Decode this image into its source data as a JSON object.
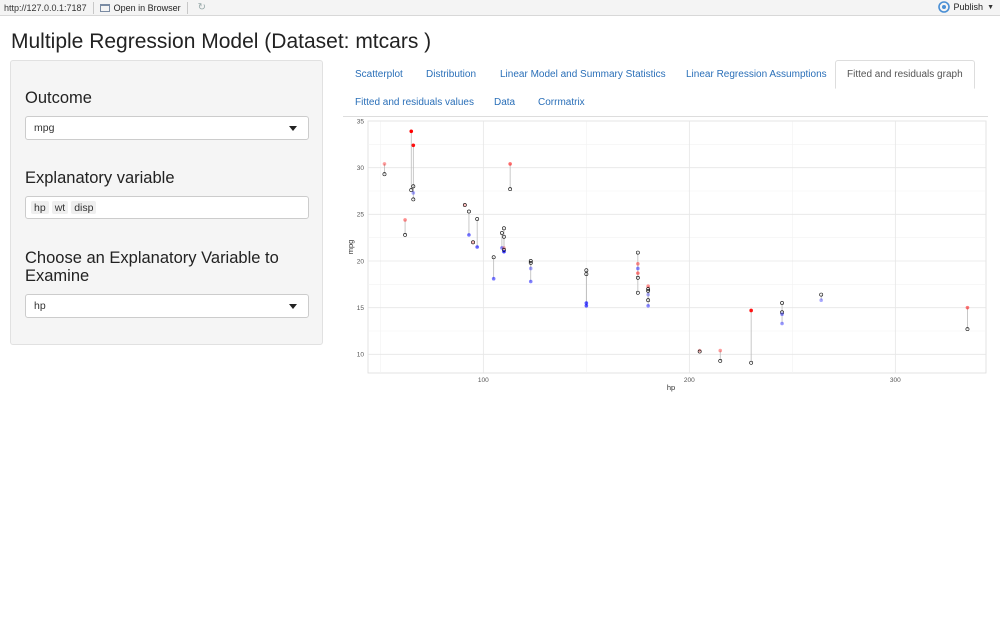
{
  "browser": {
    "url": "http://127.0.0.1:7187",
    "open_in_browser": "Open in Browser",
    "publish": "Publish"
  },
  "page": {
    "title": "Multiple Regression Model (Dataset: mtcars )"
  },
  "sidebar": {
    "outcome_label": "Outcome",
    "outcome_value": "mpg",
    "explanatory_label": "Explanatory variable",
    "explanatory_chips": [
      "hp",
      "wt",
      "disp"
    ],
    "examine_label": "Choose an Explanatory Variable to Examine",
    "examine_value": "hp"
  },
  "tabs": [
    {
      "label": "Scatterplot",
      "active": false
    },
    {
      "label": "Distribution",
      "active": false
    },
    {
      "label": "Linear Model and Summary Statistics",
      "active": false
    },
    {
      "label": "Linear Regression Assumptions",
      "active": false
    },
    {
      "label": "Fitted and residuals graph",
      "active": true
    },
    {
      "label": "Fitted and residuals values",
      "active": false
    },
    {
      "label": "Data",
      "active": false
    },
    {
      "label": "Corrmatrix",
      "active": false
    }
  ],
  "chart_data": {
    "type": "scatter",
    "xlabel": "hp",
    "ylabel": "mpg",
    "xlim": [
      44,
      344
    ],
    "ylim": [
      8,
      35
    ],
    "x_ticks": [
      100,
      200,
      300
    ],
    "y_ticks": [
      10,
      15,
      20,
      25,
      30,
      35
    ],
    "grid": true,
    "colors": {
      "high_residual": "#ff0000",
      "low_residual": "#0000ff",
      "observed": "#000000",
      "segment": "#bbbbbb"
    },
    "points": [
      {
        "hp": 52,
        "mpg": 30.4,
        "fitted": 29.3
      },
      {
        "hp": 62,
        "mpg": 24.4,
        "fitted": 22.8
      },
      {
        "hp": 65,
        "mpg": 33.9,
        "fitted": 27.6
      },
      {
        "hp": 66,
        "mpg": 32.4,
        "fitted": 26.6
      },
      {
        "hp": 66,
        "mpg": 27.3,
        "fitted": 28.0
      },
      {
        "hp": 91,
        "mpg": 26.0,
        "fitted": 26.0
      },
      {
        "hp": 93,
        "mpg": 22.8,
        "fitted": 25.3
      },
      {
        "hp": 95,
        "mpg": 22.0,
        "fitted": 22.0
      },
      {
        "hp": 97,
        "mpg": 21.5,
        "fitted": 24.5
      },
      {
        "hp": 105,
        "mpg": 18.1,
        "fitted": 20.4
      },
      {
        "hp": 109,
        "mpg": 21.4,
        "fitted": 23.0
      },
      {
        "hp": 110,
        "mpg": 21.0,
        "fitted": 22.6
      },
      {
        "hp": 110,
        "mpg": 21.0,
        "fitted": 23.5
      },
      {
        "hp": 110,
        "mpg": 21.4,
        "fitted": 21.2
      },
      {
        "hp": 113,
        "mpg": 30.4,
        "fitted": 27.7
      },
      {
        "hp": 123,
        "mpg": 19.2,
        "fitted": 20.0
      },
      {
        "hp": 123,
        "mpg": 17.8,
        "fitted": 19.8
      },
      {
        "hp": 150,
        "mpg": 15.5,
        "fitted": 19.0
      },
      {
        "hp": 150,
        "mpg": 15.2,
        "fitted": 18.6
      },
      {
        "hp": 175,
        "mpg": 19.2,
        "fitted": 20.9
      },
      {
        "hp": 175,
        "mpg": 18.7,
        "fitted": 16.6
      },
      {
        "hp": 175,
        "mpg": 19.7,
        "fitted": 18.2
      },
      {
        "hp": 180,
        "mpg": 16.4,
        "fitted": 16.8
      },
      {
        "hp": 180,
        "mpg": 17.3,
        "fitted": 15.8
      },
      {
        "hp": 180,
        "mpg": 15.2,
        "fitted": 17.0
      },
      {
        "hp": 205,
        "mpg": 10.4,
        "fitted": 10.3
      },
      {
        "hp": 215,
        "mpg": 10.4,
        "fitted": 9.3
      },
      {
        "hp": 230,
        "mpg": 14.7,
        "fitted": 9.1
      },
      {
        "hp": 245,
        "mpg": 13.3,
        "fitted": 14.5
      },
      {
        "hp": 245,
        "mpg": 14.3,
        "fitted": 15.5
      },
      {
        "hp": 264,
        "mpg": 15.8,
        "fitted": 16.4
      },
      {
        "hp": 335,
        "mpg": 15.0,
        "fitted": 12.7
      }
    ]
  }
}
